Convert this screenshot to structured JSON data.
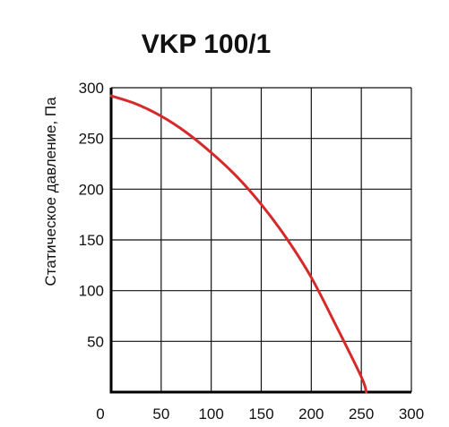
{
  "chart_data": {
    "type": "line",
    "title": "VKP 100/1",
    "xlabel": "",
    "ylabel": "Статическое давление, Па",
    "xlim": [
      0,
      300
    ],
    "ylim": [
      0,
      300
    ],
    "xticks": [
      0,
      50,
      100,
      150,
      200,
      250,
      300
    ],
    "yticks": [
      50,
      100,
      150,
      200,
      250,
      300
    ],
    "grid": true,
    "series": [
      {
        "color": "#d42a2a",
        "x": [
          0,
          25,
          50,
          75,
          100,
          125,
          150,
          175,
          200,
          225,
          250,
          255
        ],
        "y": [
          292,
          284,
          272,
          256,
          236,
          213,
          185,
          152,
          113,
          65,
          15,
          0
        ]
      }
    ]
  }
}
